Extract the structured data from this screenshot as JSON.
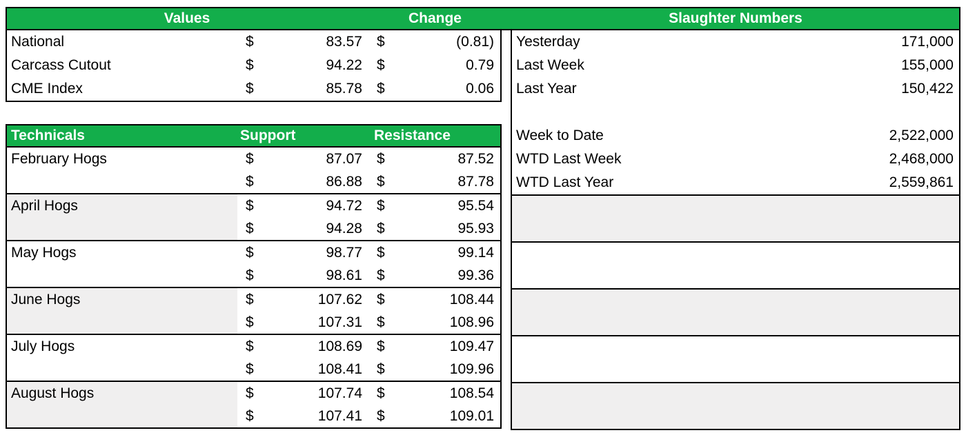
{
  "currency_symbol": "$",
  "header": {
    "values_label": "Values",
    "change_label": "Change",
    "slaughter_label": "Slaughter Numbers"
  },
  "values_table": {
    "rows": [
      {
        "label": "National",
        "value": "83.57",
        "change": "(0.81)"
      },
      {
        "label": "Carcass Cutout",
        "value": "94.22",
        "change": "0.79"
      },
      {
        "label": "CME Index",
        "value": "85.78",
        "change": "0.06"
      }
    ]
  },
  "technicals": {
    "title_label": "Technicals",
    "support_label": "Support",
    "resistance_label": "Resistance",
    "contracts": [
      {
        "label": "February Hogs",
        "shaded": false,
        "rows": [
          {
            "support": "87.07",
            "resistance": "87.52"
          },
          {
            "support": "86.88",
            "resistance": "87.78"
          }
        ]
      },
      {
        "label": "April Hogs",
        "shaded": true,
        "rows": [
          {
            "support": "94.72",
            "resistance": "95.54"
          },
          {
            "support": "94.28",
            "resistance": "95.93"
          }
        ]
      },
      {
        "label": "May Hogs",
        "shaded": false,
        "rows": [
          {
            "support": "98.77",
            "resistance": "99.14"
          },
          {
            "support": "98.61",
            "resistance": "99.36"
          }
        ]
      },
      {
        "label": "June Hogs",
        "shaded": true,
        "rows": [
          {
            "support": "107.62",
            "resistance": "108.44"
          },
          {
            "support": "107.31",
            "resistance": "108.96"
          }
        ]
      },
      {
        "label": "July Hogs",
        "shaded": false,
        "rows": [
          {
            "support": "108.69",
            "resistance": "109.47"
          },
          {
            "support": "108.41",
            "resistance": "109.96"
          }
        ]
      },
      {
        "label": "August Hogs",
        "shaded": true,
        "rows": [
          {
            "support": "107.74",
            "resistance": "108.54"
          },
          {
            "support": "107.41",
            "resistance": "109.01"
          }
        ]
      }
    ]
  },
  "slaughter": {
    "rows": [
      {
        "label": "Yesterday",
        "value": "171,000"
      },
      {
        "label": "Last Week",
        "value": "155,000"
      },
      {
        "label": "Last Year",
        "value": "150,422"
      },
      {
        "label": "",
        "value": ""
      },
      {
        "label": "Week to Date",
        "value": "2,522,000"
      },
      {
        "label": "WTD Last Week",
        "value": "2,468,000"
      },
      {
        "label": "WTD Last Year",
        "value": "2,559,861"
      }
    ]
  },
  "colors": {
    "header_green": "#13AE4B",
    "header_text_white": "#FFFFFF",
    "shaded_row_gray": "#F0EFEF",
    "border_black": "#000000",
    "text_black": "#000000"
  }
}
